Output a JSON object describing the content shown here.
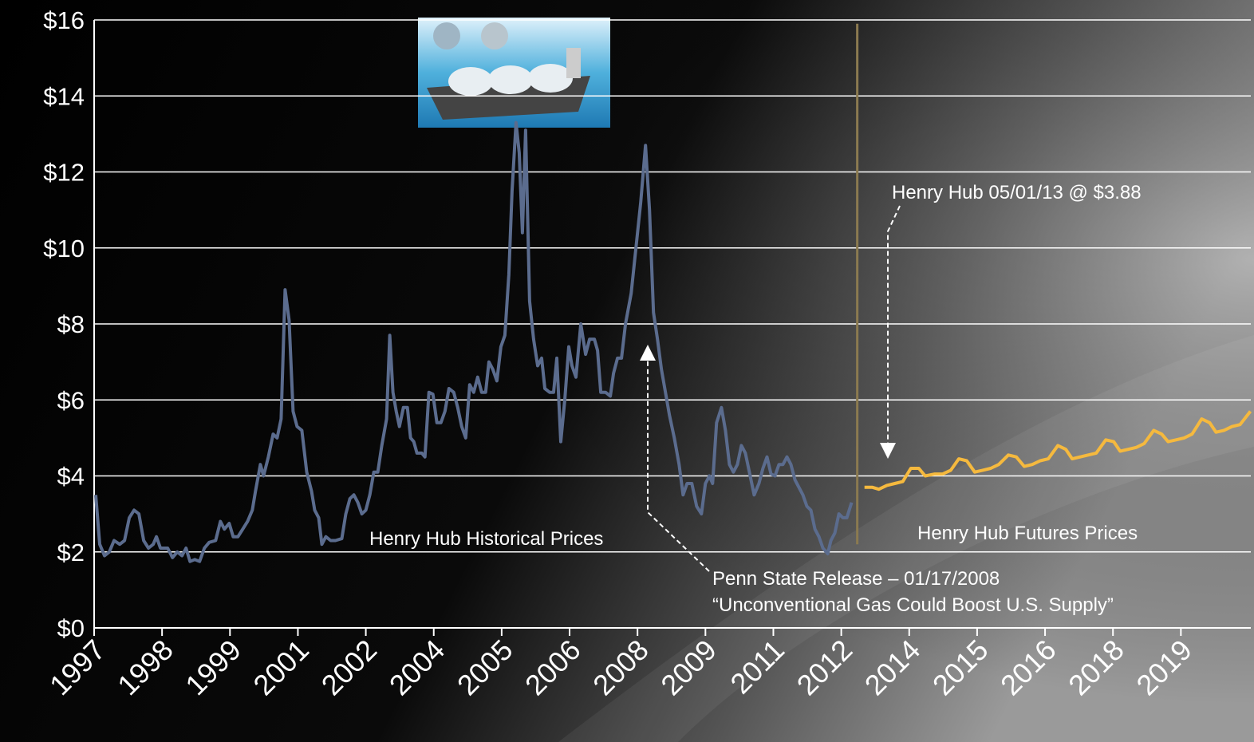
{
  "chart_data": {
    "type": "line",
    "xlim": [
      0,
      289.5
    ],
    "ylim": [
      0,
      16
    ],
    "xticks": [
      {
        "value": 0,
        "label": "1997"
      },
      {
        "value": 17,
        "label": "1998"
      },
      {
        "value": 34,
        "label": "1999"
      },
      {
        "value": 51,
        "label": "2001"
      },
      {
        "value": 68,
        "label": "2002"
      },
      {
        "value": 85,
        "label": "2004"
      },
      {
        "value": 102,
        "label": "2005"
      },
      {
        "value": 119,
        "label": "2006"
      },
      {
        "value": 136,
        "label": "2008"
      },
      {
        "value": 153,
        "label": "2009"
      },
      {
        "value": 170,
        "label": "2011"
      },
      {
        "value": 187,
        "label": "2012"
      },
      {
        "value": 204,
        "label": "2014"
      },
      {
        "value": 221,
        "label": "2015"
      },
      {
        "value": 238,
        "label": "2016"
      },
      {
        "value": 255,
        "label": "2018"
      },
      {
        "value": 272,
        "label": "2019"
      }
    ],
    "yticks": [
      {
        "value": 0,
        "label": "$0"
      },
      {
        "value": 2,
        "label": "$2"
      },
      {
        "value": 4,
        "label": "$4"
      },
      {
        "value": 6,
        "label": "$6"
      },
      {
        "value": 8,
        "label": "$8"
      },
      {
        "value": 10,
        "label": "$10"
      },
      {
        "value": 12,
        "label": "$12"
      },
      {
        "value": 14,
        "label": "$14"
      },
      {
        "value": 16,
        "label": "$16"
      }
    ],
    "grid": true,
    "divider": {
      "x": 191,
      "y": [
        2.2,
        15.9
      ],
      "color": "#8b7a50"
    },
    "annotations": [
      "Henry Hub 05/01/13 @ $3.88",
      "Penn State Release – 01/17/2008",
      "“Unconventional Gas Could Boost U.S. Supply”"
    ],
    "series": [
      {
        "name": "Henry Hub Historical Prices",
        "color": "#5b6c8e",
        "x": [
          0.4,
          1.4,
          2.6,
          3.8,
          5,
          6.4,
          7.6,
          8.8,
          10,
          11.2,
          12.4,
          13.6,
          14.8,
          15.6,
          16.6,
          18.4,
          19.6,
          20.8,
          22,
          23,
          24,
          25.2,
          26.4,
          27.6,
          28.8,
          30.4,
          31.6,
          32.6,
          33.8,
          34.8,
          36,
          37.2,
          38.4,
          39.6,
          40.4,
          41.6,
          42.4,
          43.6,
          44.8,
          45.8,
          46.8,
          47.8,
          48.8,
          49.8,
          50.8,
          52,
          53.2,
          54.4,
          55.2,
          56.2,
          57,
          58,
          59.2,
          60.4,
          62,
          63,
          64,
          65,
          66,
          67,
          68,
          69,
          70,
          71,
          72,
          73.2,
          74,
          74.8,
          75.6,
          76.4,
          77.4,
          78.4,
          79.2,
          80,
          80.8,
          82,
          82.8,
          83.8,
          84.8,
          85.8,
          86.8,
          87.8,
          88.8,
          90,
          91,
          92,
          93,
          94,
          95,
          96,
          97,
          98,
          98.8,
          99.8,
          100.8,
          101.8,
          102.8,
          103.8,
          104.6,
          105.6,
          106.4,
          107.2,
          108,
          109,
          110,
          111,
          112,
          112.8,
          114,
          115,
          115.8,
          116.8,
          117.8,
          118.8,
          119.6,
          120.6,
          121.8,
          123,
          124,
          125.2,
          126,
          126.8,
          128,
          129.2,
          130,
          131,
          132,
          133,
          134.4,
          135.6,
          136.8,
          138,
          139,
          140,
          141,
          142,
          143,
          144,
          145.2,
          146.4,
          147.4,
          148.4,
          149.6,
          150.8,
          152,
          153,
          154,
          154.8,
          155.8,
          157,
          158,
          159,
          160,
          161,
          162,
          163,
          164,
          165.2,
          166.4,
          167.4,
          168.4,
          169.4,
          170.4,
          171.4,
          172.4,
          173.4,
          174.4,
          175.4,
          176.4,
          177.4,
          178.4,
          179.4,
          180.4,
          181.4,
          182.4,
          183.6,
          184.4,
          185.4,
          186.4,
          187.4,
          188.4,
          189.6
        ],
        "values": [
          3.5,
          2.2,
          1.9,
          2,
          2.3,
          2.2,
          2.3,
          2.9,
          3.1,
          3,
          2.3,
          2.1,
          2.2,
          2.4,
          2.1,
          2.1,
          1.85,
          2,
          1.9,
          2.1,
          1.75,
          1.8,
          1.75,
          2.1,
          2.25,
          2.3,
          2.8,
          2.6,
          2.75,
          2.4,
          2.4,
          2.6,
          2.8,
          3.1,
          3.6,
          4.3,
          4,
          4.5,
          5.1,
          5,
          5.5,
          8.9,
          8.1,
          5.7,
          5.3,
          5.2,
          4.1,
          3.6,
          3.1,
          2.9,
          2.2,
          2.4,
          2.3,
          2.3,
          2.35,
          3,
          3.4,
          3.5,
          3.3,
          3,
          3.1,
          3.5,
          4.1,
          4.1,
          4.8,
          5.5,
          7.7,
          6.2,
          5.7,
          5.3,
          5.8,
          5.8,
          5,
          4.9,
          4.6,
          4.6,
          4.5,
          6.2,
          6.15,
          5.4,
          5.4,
          5.7,
          6.3,
          6.2,
          5.8,
          5.3,
          5,
          6.4,
          6.2,
          6.6,
          6.2,
          6.2,
          7,
          6.8,
          6.5,
          7.4,
          7.7,
          9.3,
          11.5,
          13.3,
          12.5,
          10.4,
          13.1,
          8.6,
          7.6,
          6.9,
          7.1,
          6.3,
          6.2,
          6.2,
          7.1,
          4.9,
          6,
          7.4,
          6.9,
          6.6,
          8,
          7.2,
          7.6,
          7.6,
          7.3,
          6.2,
          6.2,
          6.1,
          6.7,
          7.1,
          7.1,
          8,
          8.8,
          10,
          11.2,
          12.7,
          11,
          8.3,
          7.6,
          6.8,
          6.2,
          5.6,
          5,
          4.3,
          3.5,
          3.8,
          3.8,
          3.2,
          3,
          3.8,
          4,
          3.8,
          5.4,
          5.8,
          5.2,
          4.3,
          4.1,
          4.3,
          4.8,
          4.6,
          4.1,
          3.5,
          3.8,
          4.2,
          4.5,
          4.05,
          4,
          4.3,
          4.3,
          4.5,
          4.3,
          3.9,
          3.7,
          3.5,
          3.2,
          3.1,
          2.6,
          2.4,
          2.1,
          1.95,
          2.3,
          2.5,
          3,
          2.9,
          2.9,
          3.3
        ]
      },
      {
        "name": "Henry Hub Futures Prices",
        "color": "#f5b93e",
        "x": [
          192.8,
          194.8,
          196.4,
          198.4,
          200.4,
          202.4,
          204.4,
          206.4,
          208,
          210.4,
          212.4,
          214.4,
          216.4,
          218.4,
          220.4,
          222.4,
          224.4,
          226.4,
          228.8,
          230.8,
          232.8,
          234.8,
          236.8,
          238.8,
          241.2,
          243.2,
          244.8,
          246.8,
          248.8,
          250.8,
          253.2,
          255.2,
          256.8,
          258.8,
          260.8,
          262.8,
          265.2,
          267.2,
          268.8,
          270.8,
          272.8,
          274.8,
          277.2,
          279.2,
          280.8,
          282.8,
          284.8,
          286.8,
          289.4
        ],
        "values": [
          3.7,
          3.7,
          3.65,
          3.75,
          3.8,
          3.85,
          4.2,
          4.2,
          4,
          4.05,
          4.05,
          4.15,
          4.45,
          4.4,
          4.1,
          4.15,
          4.2,
          4.3,
          4.55,
          4.5,
          4.25,
          4.3,
          4.4,
          4.45,
          4.8,
          4.7,
          4.45,
          4.5,
          4.55,
          4.6,
          4.95,
          4.9,
          4.65,
          4.7,
          4.75,
          4.85,
          5.2,
          5.1,
          4.9,
          4.95,
          5,
          5.1,
          5.5,
          5.4,
          5.15,
          5.2,
          5.3,
          5.35,
          5.7
        ]
      }
    ]
  }
}
